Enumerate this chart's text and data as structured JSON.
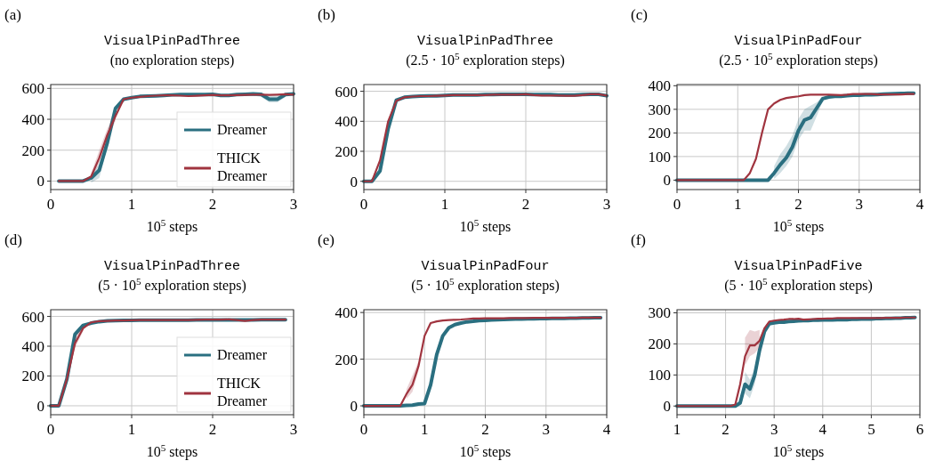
{
  "chart_data": [
    {
      "type": "line",
      "annotations": [
        "(a)"
      ],
      "title": "VisualPinPadThree",
      "subtitle": "(no exploration steps)",
      "xlabel": "10$^{5}$ steps",
      "xlim": [
        0,
        3
      ],
      "xticks": [
        0,
        1,
        2,
        3
      ],
      "ylim": [
        -55,
        625
      ],
      "yticks": [
        0,
        200,
        400,
        600
      ],
      "grid": true,
      "legend": "bottom right",
      "line_style": "solid",
      "marker": "none",
      "x": [
        0.1,
        0.2,
        0.3,
        0.4,
        0.5,
        0.6,
        0.7,
        0.8,
        0.9,
        1.0,
        1.1,
        1.2,
        1.3,
        1.4,
        1.5,
        1.6,
        1.7,
        1.8,
        1.9,
        2.0,
        2.1,
        2.2,
        2.3,
        2.4,
        2.5,
        2.6,
        2.7,
        2.8,
        2.9,
        3.0
      ],
      "series": [
        {
          "name": "Dreamer",
          "color": "#2a6f80",
          "values": [
            0,
            0,
            0,
            0,
            20,
            70,
            250,
            470,
            530,
            540,
            548,
            550,
            552,
            555,
            558,
            560,
            560,
            560,
            560,
            562,
            555,
            555,
            560,
            562,
            565,
            562,
            530,
            530,
            560,
            565
          ],
          "lower": [
            null,
            null,
            null,
            null,
            -10,
            20,
            220,
            440,
            null,
            null,
            null,
            null,
            null,
            null,
            null,
            null,
            null,
            null,
            null,
            null,
            null,
            null,
            null,
            null,
            555,
            545,
            510,
            510,
            545,
            null
          ],
          "upper": [
            null,
            null,
            null,
            null,
            40,
            110,
            280,
            490,
            null,
            null,
            null,
            null,
            null,
            null,
            null,
            null,
            null,
            null,
            null,
            null,
            null,
            null,
            null,
            null,
            572,
            570,
            555,
            555,
            570,
            null
          ]
        },
        {
          "name": "THICK Dreamer",
          "color": "#a0343f",
          "values": [
            0,
            0,
            0,
            0,
            30,
            150,
            300,
            420,
            530,
            540,
            545,
            550,
            553,
            555,
            555,
            553,
            550,
            552,
            555,
            558,
            555,
            555,
            556,
            558,
            560,
            560,
            558,
            560,
            562,
            560
          ],
          "lower": [
            null,
            null,
            null,
            null,
            10,
            120,
            270,
            390,
            null,
            null,
            null,
            null,
            null,
            null,
            null,
            null,
            null,
            null,
            null,
            null,
            null,
            null,
            null,
            null,
            null,
            null,
            null,
            null,
            null,
            null
          ],
          "upper": [
            null,
            null,
            null,
            null,
            50,
            200,
            340,
            450,
            null,
            null,
            null,
            null,
            null,
            null,
            null,
            null,
            null,
            null,
            null,
            null,
            null,
            null,
            null,
            null,
            null,
            null,
            null,
            null,
            null,
            null
          ]
        }
      ]
    },
    {
      "type": "line",
      "annotations": [
        "(b)"
      ],
      "title": "VisualPinPadThree",
      "subtitle": "(2.5 · 10$^{5}$ exploration steps)",
      "xlabel": "10$^{5}$ steps",
      "xlim": [
        0,
        3
      ],
      "xticks": [
        0,
        1,
        2,
        3
      ],
      "ylim": [
        -55,
        645
      ],
      "yticks": [
        0,
        200,
        400,
        600
      ],
      "grid": true,
      "line_style": "solid",
      "marker": "none",
      "x": [
        0,
        0.1,
        0.2,
        0.3,
        0.4,
        0.5,
        0.6,
        0.7,
        0.8,
        0.9,
        1.0,
        1.1,
        1.2,
        1.3,
        1.4,
        1.5,
        1.6,
        1.7,
        1.8,
        1.9,
        2.0,
        2.1,
        2.2,
        2.3,
        2.4,
        2.5,
        2.6,
        2.7,
        2.8,
        2.9,
        3.0
      ],
      "series": [
        {
          "color": "#2a6f80",
          "values": [
            0,
            0,
            70,
            350,
            540,
            560,
            565,
            568,
            570,
            570,
            572,
            575,
            575,
            575,
            575,
            578,
            578,
            580,
            580,
            580,
            580,
            578,
            578,
            578,
            575,
            575,
            575,
            578,
            580,
            580,
            570
          ]
        },
        {
          "color": "#a0343f",
          "values": [
            0,
            0,
            140,
            400,
            535,
            560,
            565,
            568,
            568,
            570,
            572,
            575,
            575,
            575,
            575,
            575,
            578,
            578,
            578,
            578,
            580,
            575,
            572,
            572,
            572,
            570,
            570,
            575,
            580,
            580,
            572
          ]
        }
      ]
    },
    {
      "type": "line",
      "annotations": [
        "(c)"
      ],
      "title": "VisualPinPadFour",
      "subtitle": "(2.5 · 10$^{5}$ exploration steps)",
      "xlabel": "10$^{5}$ steps",
      "xlim": [
        0,
        4
      ],
      "xticks": [
        0,
        1,
        2,
        3,
        4
      ],
      "ylim": [
        -40,
        405
      ],
      "yticks": [
        0,
        100,
        200,
        300,
        400
      ],
      "grid": true,
      "line_style": "solid",
      "marker": "none",
      "x": [
        0,
        0.1,
        0.2,
        0.3,
        0.4,
        0.5,
        0.6,
        0.7,
        0.8,
        0.9,
        1.0,
        1.1,
        1.2,
        1.3,
        1.4,
        1.5,
        1.6,
        1.7,
        1.8,
        1.9,
        2.0,
        2.1,
        2.2,
        2.3,
        2.4,
        2.5,
        2.6,
        2.7,
        2.8,
        2.9,
        3.0,
        3.1,
        3.2,
        3.3,
        3.4,
        3.5,
        3.6,
        3.7,
        3.8,
        3.9
      ],
      "series": [
        {
          "color": "#2a6f80",
          "values": [
            0,
            0,
            0,
            0,
            0,
            0,
            0,
            0,
            0,
            0,
            0,
            0,
            0,
            0,
            0,
            0,
            30,
            65,
            95,
            140,
            210,
            255,
            265,
            305,
            345,
            352,
            355,
            355,
            358,
            360,
            360,
            362,
            362,
            363,
            364,
            365,
            366,
            367,
            368,
            368
          ],
          "lower": [
            null,
            null,
            null,
            null,
            null,
            null,
            null,
            null,
            null,
            null,
            null,
            null,
            null,
            null,
            null,
            null,
            5,
            30,
            60,
            100,
            170,
            210,
            210,
            270,
            335,
            null,
            null,
            null,
            null,
            null,
            null,
            null,
            null,
            null,
            null,
            null,
            null,
            null,
            null,
            null
          ],
          "upper": [
            null,
            null,
            null,
            null,
            null,
            null,
            null,
            null,
            null,
            null,
            null,
            null,
            null,
            null,
            null,
            null,
            60,
            110,
            145,
            190,
            260,
            300,
            315,
            330,
            355,
            null,
            null,
            null,
            null,
            null,
            null,
            null,
            null,
            null,
            null,
            null,
            null,
            null,
            null,
            null
          ]
        },
        {
          "color": "#a0343f",
          "values": [
            0,
            0,
            0,
            0,
            0,
            0,
            0,
            0,
            0,
            0,
            0,
            0,
            30,
            90,
            200,
            300,
            325,
            340,
            348,
            352,
            355,
            360,
            362,
            362,
            362,
            362,
            361,
            360,
            362,
            365,
            365,
            365,
            365,
            363,
            363,
            363,
            363,
            363,
            365,
            365
          ]
        }
      ]
    },
    {
      "type": "line",
      "annotations": [
        "(d)"
      ],
      "title": "VisualPinPadThree",
      "subtitle": "(5 · 10$^{5}$ exploration steps)",
      "xlabel": "10$^{5}$ steps",
      "xlim": [
        0,
        3
      ],
      "xticks": [
        0,
        1,
        2,
        3
      ],
      "ylim": [
        -60,
        645
      ],
      "yticks": [
        0,
        200,
        400,
        600
      ],
      "grid": true,
      "legend": "bottom right",
      "line_style": "solid",
      "marker": "none",
      "x": [
        0,
        0.1,
        0.2,
        0.3,
        0.4,
        0.5,
        0.6,
        0.7,
        0.8,
        0.9,
        1.0,
        1.1,
        1.2,
        1.3,
        1.4,
        1.5,
        1.6,
        1.7,
        1.8,
        1.9,
        2.0,
        2.1,
        2.2,
        2.3,
        2.4,
        2.5,
        2.6,
        2.7,
        2.8,
        2.9
      ],
      "series": [
        {
          "name": "Dreamer",
          "color": "#2a6f80",
          "values": [
            0,
            0,
            180,
            480,
            540,
            555,
            565,
            570,
            572,
            573,
            574,
            575,
            575,
            575,
            575,
            575,
            575,
            575,
            576,
            576,
            576,
            577,
            577,
            577,
            577,
            577,
            578,
            578,
            578,
            578
          ]
        },
        {
          "name": "THICK Dreamer",
          "color": "#a0343f",
          "values": [
            0,
            0,
            180,
            420,
            520,
            560,
            568,
            570,
            572,
            573,
            574,
            575,
            575,
            575,
            575,
            575,
            576,
            576,
            577,
            578,
            578,
            578,
            580,
            575,
            570,
            575,
            578,
            578,
            578,
            578
          ],
          "lower": [
            null,
            null,
            150,
            390,
            500,
            null,
            null,
            null,
            null,
            null,
            null,
            null,
            null,
            null,
            null,
            null,
            null,
            null,
            null,
            null,
            null,
            null,
            null,
            null,
            null,
            null,
            null,
            null,
            null,
            null
          ],
          "upper": [
            null,
            null,
            210,
            460,
            540,
            null,
            null,
            null,
            null,
            null,
            null,
            null,
            null,
            null,
            null,
            null,
            null,
            null,
            null,
            null,
            null,
            null,
            null,
            null,
            null,
            null,
            null,
            null,
            null,
            null
          ]
        }
      ]
    },
    {
      "type": "line",
      "annotations": [
        "(e)"
      ],
      "title": "VisualPinPadFour",
      "subtitle": "(5 · 10$^{5}$ exploration steps)",
      "xlabel": "10$^{5}$ steps",
      "xlim": [
        0,
        4
      ],
      "xticks": [
        0,
        1,
        2,
        3,
        4
      ],
      "ylim": [
        -38,
        412
      ],
      "yticks": [
        0,
        200,
        400
      ],
      "grid": true,
      "line_style": "solid",
      "marker": "none",
      "x": [
        0,
        0.1,
        0.2,
        0.3,
        0.4,
        0.5,
        0.6,
        0.7,
        0.8,
        0.9,
        1.0,
        1.1,
        1.2,
        1.3,
        1.4,
        1.5,
        1.6,
        1.7,
        1.8,
        1.9,
        2.0,
        2.1,
        2.2,
        2.3,
        2.4,
        2.5,
        2.6,
        2.7,
        2.8,
        2.9,
        3.0,
        3.1,
        3.2,
        3.3,
        3.4,
        3.5,
        3.6,
        3.7,
        3.8,
        3.9
      ],
      "series": [
        {
          "color": "#2a6f80",
          "values": [
            0,
            0,
            0,
            0,
            0,
            0,
            0,
            2,
            3,
            8,
            10,
            90,
            220,
            300,
            335,
            348,
            355,
            360,
            362,
            365,
            366,
            368,
            369,
            370,
            371,
            372,
            372,
            373,
            373,
            374,
            374,
            375,
            375,
            375,
            376,
            376,
            377,
            377,
            378,
            378
          ]
        },
        {
          "color": "#a0343f",
          "values": [
            0,
            0,
            0,
            0,
            0,
            0,
            0,
            50,
            90,
            170,
            300,
            355,
            362,
            366,
            368,
            369,
            370,
            372,
            374,
            374,
            375,
            375,
            375,
            375,
            376,
            376,
            376,
            376,
            377,
            377,
            377,
            377,
            377,
            377,
            377,
            377,
            378,
            378,
            378,
            378
          ],
          "lower": [
            null,
            null,
            null,
            null,
            null,
            null,
            null,
            30,
            60,
            150,
            null,
            null,
            null,
            null,
            null,
            null,
            null,
            null,
            null,
            null,
            null,
            null,
            null,
            null,
            null,
            null,
            null,
            null,
            null,
            null,
            null,
            null,
            null,
            null,
            null,
            null,
            null,
            null,
            null,
            null
          ],
          "upper": [
            null,
            null,
            null,
            null,
            null,
            null,
            null,
            70,
            130,
            190,
            null,
            null,
            null,
            null,
            null,
            null,
            null,
            null,
            null,
            null,
            null,
            null,
            null,
            null,
            null,
            null,
            null,
            null,
            null,
            null,
            null,
            null,
            null,
            null,
            null,
            null,
            null,
            null,
            null,
            null
          ]
        }
      ]
    },
    {
      "type": "line",
      "annotations": [
        "(f)"
      ],
      "title": "VisualPinPadFive",
      "subtitle": "(5 · 10$^{5}$ exploration steps)",
      "xlabel": "10$^{5}$ steps",
      "xlim": [
        1,
        6
      ],
      "xticks": [
        1,
        2,
        3,
        4,
        5,
        6
      ],
      "ylim": [
        -28,
        310
      ],
      "yticks": [
        0,
        100,
        200,
        300
      ],
      "grid": true,
      "line_style": "solid",
      "marker": "none",
      "x": [
        1.0,
        1.1,
        1.2,
        1.3,
        1.4,
        1.5,
        1.6,
        1.7,
        1.8,
        1.9,
        2.0,
        2.1,
        2.2,
        2.3,
        2.4,
        2.5,
        2.6,
        2.7,
        2.8,
        2.9,
        3.0,
        3.1,
        3.2,
        3.3,
        3.4,
        3.5,
        3.6,
        3.7,
        3.8,
        3.9,
        4.0,
        4.1,
        4.2,
        4.3,
        4.4,
        4.5,
        4.6,
        4.7,
        4.8,
        4.9,
        5.0,
        5.1,
        5.2,
        5.3,
        5.4,
        5.5,
        5.6,
        5.7,
        5.8,
        5.9
      ],
      "series": [
        {
          "color": "#2a6f80",
          "values": [
            0,
            0,
            0,
            0,
            0,
            0,
            0,
            0,
            0,
            0,
            0,
            0,
            0,
            10,
            70,
            55,
            100,
            180,
            240,
            265,
            268,
            270,
            270,
            272,
            273,
            274,
            275,
            275,
            276,
            276,
            277,
            277,
            277,
            278,
            278,
            278,
            279,
            279,
            280,
            280,
            280,
            281,
            281,
            282,
            282,
            283,
            283,
            284,
            284,
            285
          ],
          "lower": [
            null,
            null,
            null,
            null,
            null,
            null,
            null,
            null,
            null,
            null,
            null,
            null,
            null,
            null,
            40,
            25,
            70,
            160,
            null,
            null,
            null,
            null,
            null,
            null,
            null,
            null,
            null,
            null,
            null,
            null,
            null,
            null,
            null,
            null,
            null,
            null,
            null,
            null,
            null,
            null,
            null,
            null,
            null,
            null,
            null,
            null,
            null,
            null,
            null,
            null
          ],
          "upper": [
            null,
            null,
            null,
            null,
            null,
            null,
            null,
            null,
            null,
            null,
            null,
            null,
            null,
            null,
            110,
            85,
            120,
            200,
            null,
            null,
            null,
            null,
            null,
            null,
            null,
            null,
            null,
            null,
            null,
            null,
            null,
            null,
            null,
            null,
            null,
            null,
            null,
            null,
            null,
            null,
            null,
            null,
            null,
            null,
            null,
            null,
            null,
            null,
            null,
            null
          ]
        },
        {
          "color": "#a0343f",
          "values": [
            0,
            0,
            0,
            0,
            0,
            0,
            0,
            0,
            0,
            0,
            0,
            0,
            5,
            70,
            160,
            195,
            195,
            210,
            250,
            272,
            275,
            277,
            278,
            280,
            280,
            281,
            278,
            279,
            280,
            281,
            281,
            282,
            282,
            283,
            283,
            283,
            283,
            283,
            283,
            283,
            283,
            283,
            283,
            284,
            284,
            284,
            284,
            285,
            285,
            285
          ],
          "lower": [
            null,
            null,
            null,
            null,
            null,
            null,
            null,
            null,
            null,
            null,
            null,
            null,
            null,
            null,
            130,
            160,
            170,
            190,
            null,
            null,
            null,
            null,
            null,
            null,
            null,
            null,
            null,
            null,
            null,
            null,
            null,
            null,
            null,
            null,
            null,
            null,
            null,
            null,
            null,
            null,
            null,
            null,
            null,
            null,
            null,
            null,
            null,
            null,
            null,
            null
          ],
          "upper": [
            null,
            null,
            null,
            null,
            null,
            null,
            null,
            null,
            null,
            null,
            null,
            null,
            null,
            null,
            220,
            245,
            240,
            245,
            null,
            null,
            null,
            null,
            null,
            null,
            null,
            null,
            null,
            null,
            null,
            null,
            null,
            null,
            null,
            null,
            null,
            null,
            null,
            null,
            null,
            null,
            null,
            null,
            null,
            null,
            null,
            null,
            null,
            null,
            null,
            null
          ]
        }
      ]
    }
  ]
}
